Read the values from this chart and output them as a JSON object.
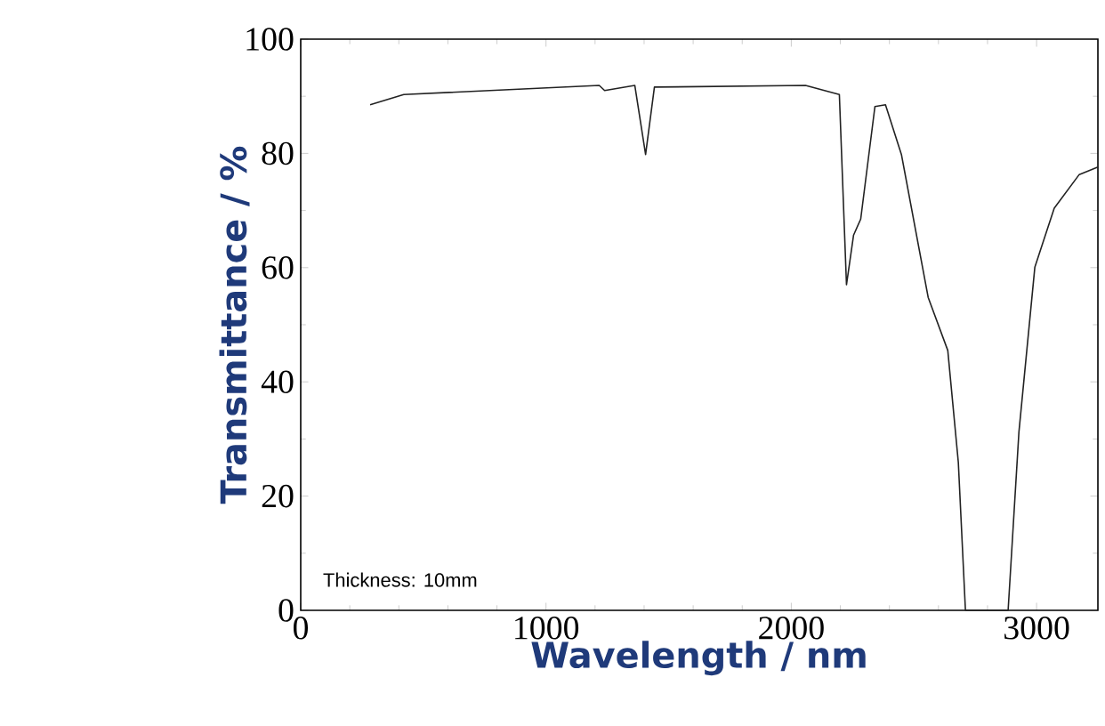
{
  "chart_data": {
    "type": "line",
    "xlabel": "Wavelength / nm",
    "ylabel": "Transmittance / %",
    "annotations": [
      "Thickness: 10mm"
    ],
    "xlim": [
      0,
      3250
    ],
    "ylim": [
      0,
      100
    ],
    "xticks": [
      0,
      1000,
      2000,
      3000
    ],
    "yticks": [
      0,
      20,
      40,
      60,
      80,
      100
    ],
    "series": [
      {
        "color": "#222222",
        "x": [
          283,
          420,
          1217,
          1239,
          1362,
          1406,
          1442,
          2058,
          2196,
          2225,
          2254,
          2283,
          2341,
          2384,
          2449,
          2558,
          2638,
          2681,
          2710,
          2884,
          2928,
          2993,
          3072,
          3174,
          3250
        ],
        "values": [
          88.5,
          90.3,
          91.9,
          91.0,
          91.9,
          79.8,
          91.6,
          91.9,
          90.3,
          57.0,
          65.7,
          68.5,
          88.2,
          88.5,
          79.8,
          54.8,
          45.5,
          25.9,
          0,
          0,
          31.2,
          60.1,
          70.4,
          76.3,
          77.6
        ]
      }
    ]
  }
}
